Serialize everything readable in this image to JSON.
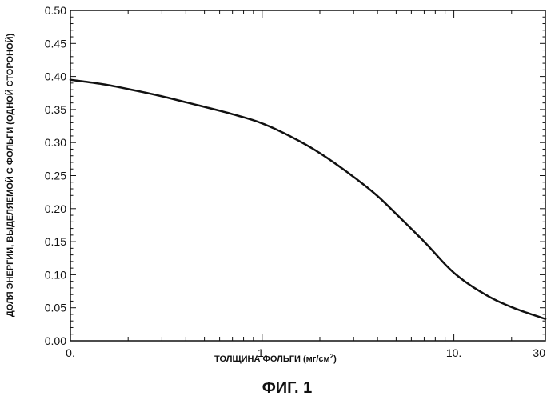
{
  "chart_data": {
    "type": "line",
    "x_scale": "log",
    "xlim": [
      0.1,
      30
    ],
    "ylim": [
      0.0,
      0.5
    ],
    "y_ticks": [
      {
        "value": 0.0,
        "label": "0.00"
      },
      {
        "value": 0.05,
        "label": "0.05"
      },
      {
        "value": 0.1,
        "label": "0.10"
      },
      {
        "value": 0.15,
        "label": "0.15"
      },
      {
        "value": 0.2,
        "label": "0.20"
      },
      {
        "value": 0.25,
        "label": "0.25"
      },
      {
        "value": 0.3,
        "label": "0.30"
      },
      {
        "value": 0.35,
        "label": "0.35"
      },
      {
        "value": 0.4,
        "label": "0.40"
      },
      {
        "value": 0.45,
        "label": "0.45"
      },
      {
        "value": 0.5,
        "label": "0.50"
      }
    ],
    "x_ticks": [
      {
        "value": 0.1,
        "label": "0."
      },
      {
        "value": 1,
        "label": "1."
      },
      {
        "value": 10,
        "label": "10."
      },
      {
        "value": 30,
        "label": "30"
      }
    ],
    "xlabel_main": "ТОЛЩИНА ФОЛЬГИ (мг/см",
    "xlabel_sup": "2",
    "xlabel_end": ")",
    "ylabel": "ДОЛЯ ЭНЕРГИИ, ВЫДЕЛЯЕМОЙ С ФОЛЬГИ (ОДНОЙ СТОРОНОЙ)",
    "grid": false,
    "series": [
      {
        "x": [
          0.1,
          0.15,
          0.2,
          0.3,
          0.4,
          0.5,
          0.7,
          1.0,
          1.5,
          2.0,
          3.0,
          4.0,
          5.0,
          7.0,
          10.0,
          15.0,
          20.0,
          30.0
        ],
        "y": [
          0.395,
          0.388,
          0.381,
          0.37,
          0.361,
          0.354,
          0.343,
          0.329,
          0.305,
          0.284,
          0.248,
          0.219,
          0.192,
          0.15,
          0.103,
          0.068,
          0.051,
          0.033
        ],
        "color": "#111111"
      }
    ]
  },
  "caption": "ФИГ. 1"
}
